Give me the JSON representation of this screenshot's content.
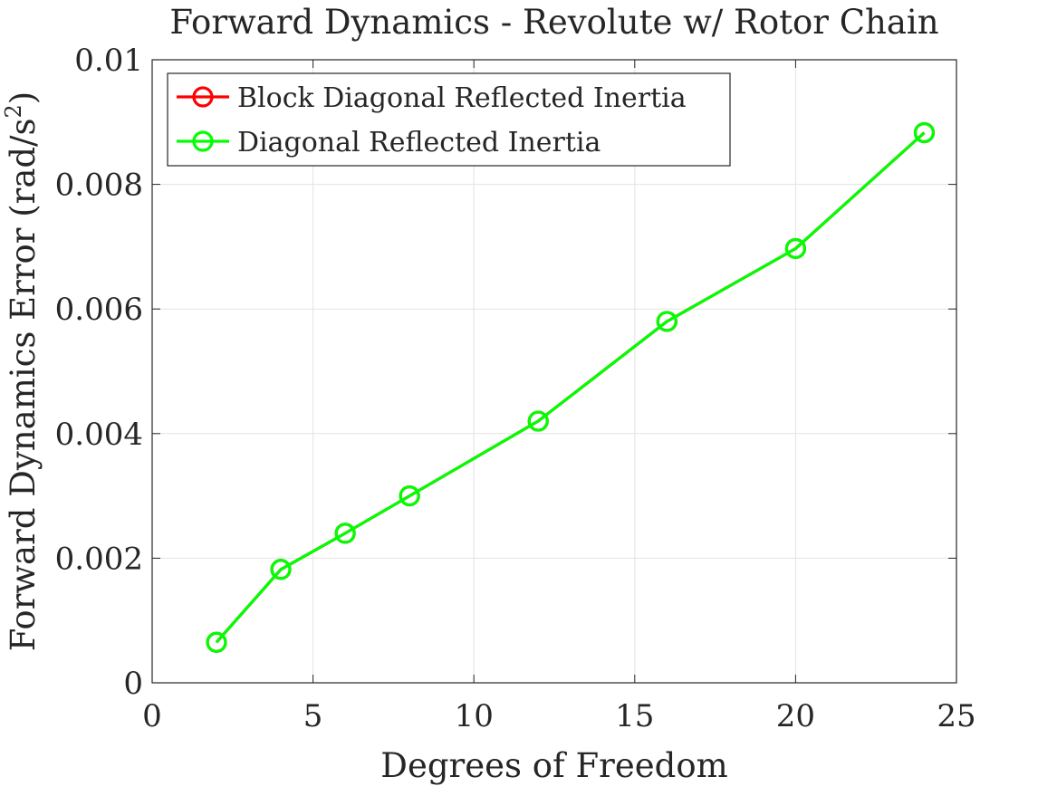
{
  "chart_data": {
    "type": "line",
    "title": "Forward Dynamics - Revolute w/ Rotor Chain",
    "xlabel": "Degrees of Freedom",
    "ylabel": "Forward Dynamics Error (rad/s",
    "ylabel_sup": "2",
    "ylabel_close": ")",
    "xlim": [
      0,
      25
    ],
    "ylim": [
      0,
      0.01
    ],
    "xticks": [
      0,
      5,
      10,
      15,
      20,
      25
    ],
    "xtick_labels": [
      "0",
      "5",
      "10",
      "15",
      "20",
      "25"
    ],
    "yticks": [
      0,
      0.002,
      0.004,
      0.006,
      0.008,
      0.01
    ],
    "ytick_labels": [
      "0",
      "0.002",
      "0.004",
      "0.006",
      "0.008",
      "0.01"
    ],
    "grid": true,
    "legend_position": "top-left",
    "x": [
      2,
      4,
      6,
      8,
      12,
      16,
      20,
      24
    ],
    "series": [
      {
        "name": "Block Diagonal Reflected Inertia",
        "color": "#ff0000",
        "marker": "circle",
        "values": [
          0.00065,
          0.00182,
          0.0024,
          0.003,
          0.0042,
          0.0058,
          0.00697,
          0.00883
        ]
      },
      {
        "name": "Diagonal Reflected Inertia",
        "color": "#00ff00",
        "marker": "circle",
        "values": [
          0.00065,
          0.00182,
          0.0024,
          0.003,
          0.0042,
          0.0058,
          0.00697,
          0.00883
        ]
      }
    ]
  }
}
